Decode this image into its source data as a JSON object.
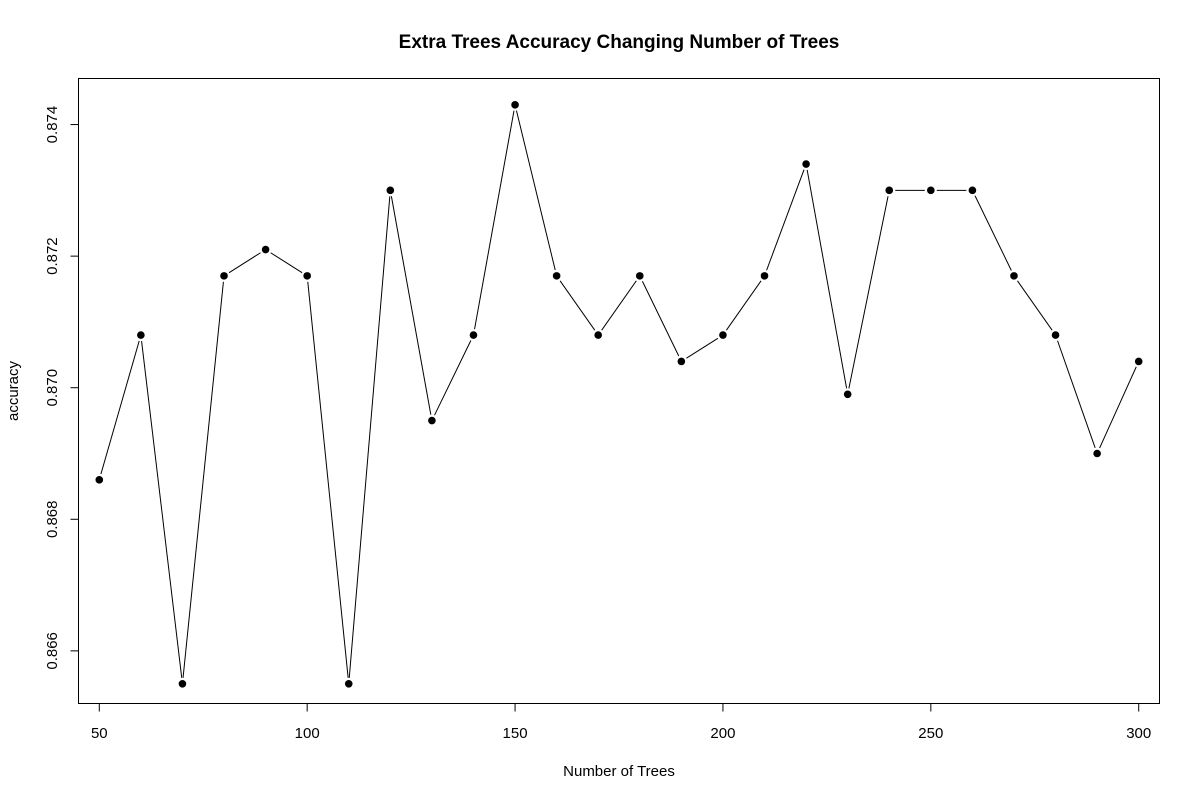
{
  "chart_data": {
    "type": "line",
    "title": "Extra Trees Accuracy Changing Number of Trees",
    "xlabel": "Number of Trees",
    "ylabel": "accuracy",
    "xlim": [
      45,
      305
    ],
    "ylim": [
      0.8652,
      0.8747
    ],
    "x_ticks": [
      50,
      100,
      150,
      200,
      250,
      300
    ],
    "x_tick_labels": [
      "50",
      "100",
      "150",
      "200",
      "250",
      "300"
    ],
    "y_ticks": [
      0.866,
      0.868,
      0.87,
      0.872,
      0.874
    ],
    "y_tick_labels": [
      "0.866",
      "0.868",
      "0.870",
      "0.872",
      "0.874"
    ],
    "grid": false,
    "legend": "none",
    "line_color": "#000000",
    "marker_color": "#000000",
    "x": [
      50,
      60,
      70,
      80,
      90,
      100,
      110,
      120,
      130,
      140,
      150,
      160,
      170,
      180,
      190,
      200,
      210,
      220,
      230,
      240,
      250,
      260,
      270,
      280,
      290,
      300
    ],
    "series": [
      {
        "values": [
          0.8686,
          0.8708,
          0.8655,
          0.8717,
          0.8721,
          0.8717,
          0.8655,
          0.873,
          0.8695,
          0.8708,
          0.8743,
          0.8717,
          0.8708,
          0.8717,
          0.8704,
          0.8708,
          0.8717,
          0.8734,
          0.8699,
          0.873,
          0.873,
          0.873,
          0.8717,
          0.8708,
          0.869,
          0.8704
        ]
      }
    ]
  }
}
